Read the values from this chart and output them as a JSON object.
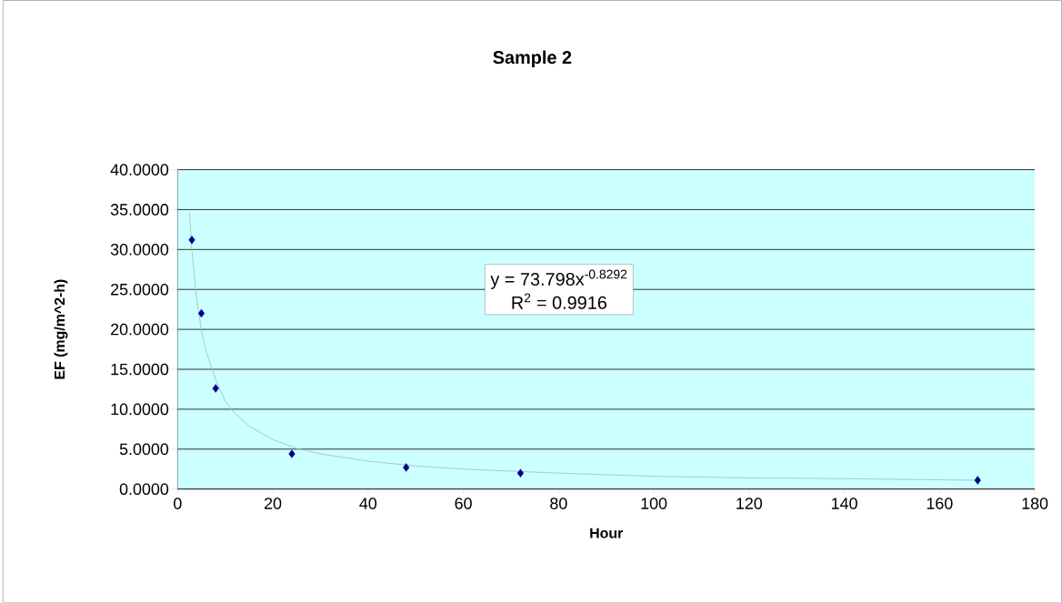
{
  "chart_data": {
    "type": "scatter",
    "title": "Sample 2",
    "xlabel": "Hour",
    "ylabel": "EF (mg/m^2-h)",
    "annotations": [
      "y = 73.798x$^{-0.8292}$",
      "R$^{2}$ = 0.9916"
    ],
    "xlim": [
      0,
      180
    ],
    "xticks": [
      0,
      20,
      40,
      60,
      80,
      100,
      120,
      140,
      160,
      180
    ],
    "ylim": [
      0,
      40
    ],
    "yticks": [
      {
        "value": 0,
        "label": "0.0000"
      },
      {
        "value": 5,
        "label": "5.0000"
      },
      {
        "value": 10,
        "label": "10.0000"
      },
      {
        "value": 15,
        "label": "15.0000"
      },
      {
        "value": 20,
        "label": "20.0000"
      },
      {
        "value": 25,
        "label": "25.0000"
      },
      {
        "value": 30,
        "label": "30.0000"
      },
      {
        "value": 35,
        "label": "35.0000"
      },
      {
        "value": 40,
        "label": "40.0000"
      }
    ],
    "grid": "y",
    "series": [
      {
        "color": "#000080",
        "marker": "diamond",
        "x": [
          3,
          5,
          8,
          24,
          48,
          72,
          168
        ],
        "values": [
          31.2,
          22.0,
          12.6,
          4.4,
          2.7,
          2.0,
          1.1
        ]
      },
      {
        "type": "line",
        "color": "#99c8c8",
        "marker": "none",
        "line_style": "solid",
        "x": [
          2.5,
          3,
          4,
          5,
          6,
          8,
          10,
          12,
          15,
          20,
          25,
          30,
          40,
          50,
          60,
          80,
          100,
          120,
          140,
          168
        ],
        "values": [
          34.6,
          29.9,
          23.8,
          19.9,
          17.2,
          13.7,
          11.0,
          9.5,
          7.9,
          6.2,
          5.1,
          4.4,
          3.5,
          2.9,
          2.5,
          2.0,
          1.6,
          1.4,
          1.3,
          1.1
        ]
      }
    ]
  }
}
